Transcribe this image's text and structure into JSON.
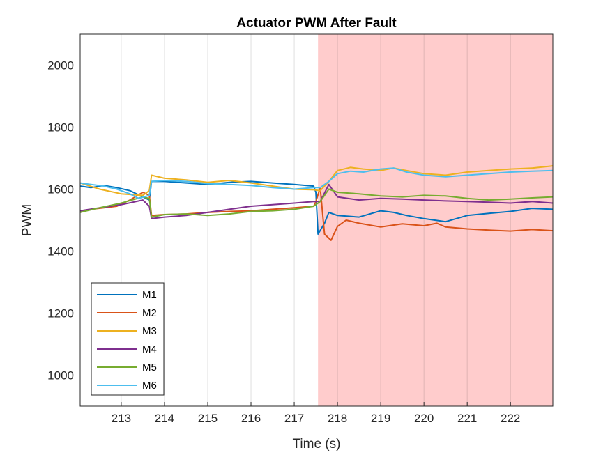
{
  "chart_data": {
    "type": "line",
    "title": "Actuator PWM After Fault",
    "xlabel": "Time (s)",
    "ylabel": "PWM",
    "xlim": [
      212.05,
      222.98
    ],
    "ylim": [
      900,
      2100
    ],
    "xticks": [
      213,
      214,
      215,
      216,
      217,
      218,
      219,
      220,
      221,
      222
    ],
    "yticks": [
      1000,
      1200,
      1400,
      1600,
      1800,
      2000
    ],
    "grid": true,
    "legend_position": "bottom-left",
    "fault_region": {
      "start": 217.55,
      "end": 222.98,
      "color": "#ffcccc"
    },
    "series": [
      {
        "name": "M1",
        "color": "#0072BD",
        "points": [
          [
            212.05,
            1610
          ],
          [
            212.3,
            1605
          ],
          [
            212.6,
            1612
          ],
          [
            212.9,
            1605
          ],
          [
            213.2,
            1595
          ],
          [
            213.5,
            1575
          ],
          [
            213.65,
            1565
          ],
          [
            213.7,
            1625
          ],
          [
            214.0,
            1625
          ],
          [
            214.5,
            1620
          ],
          [
            215.0,
            1615
          ],
          [
            215.5,
            1622
          ],
          [
            216.0,
            1625
          ],
          [
            216.5,
            1620
          ],
          [
            217.0,
            1615
          ],
          [
            217.45,
            1610
          ],
          [
            217.5,
            1590
          ],
          [
            217.55,
            1455
          ],
          [
            217.7,
            1490
          ],
          [
            217.8,
            1525
          ],
          [
            218.0,
            1515
          ],
          [
            218.5,
            1510
          ],
          [
            219.0,
            1530
          ],
          [
            219.3,
            1525
          ],
          [
            219.6,
            1515
          ],
          [
            220.0,
            1505
          ],
          [
            220.5,
            1495
          ],
          [
            221.0,
            1515
          ],
          [
            221.5,
            1522
          ],
          [
            222.0,
            1528
          ],
          [
            222.5,
            1538
          ],
          [
            222.98,
            1535
          ]
        ]
      },
      {
        "name": "M2",
        "color": "#D95319",
        "points": [
          [
            212.05,
            1530
          ],
          [
            212.3,
            1535
          ],
          [
            212.6,
            1540
          ],
          [
            212.9,
            1545
          ],
          [
            213.2,
            1565
          ],
          [
            213.5,
            1590
          ],
          [
            213.65,
            1580
          ],
          [
            213.7,
            1515
          ],
          [
            214.0,
            1518
          ],
          [
            214.5,
            1520
          ],
          [
            215.0,
            1525
          ],
          [
            215.5,
            1528
          ],
          [
            216.0,
            1530
          ],
          [
            216.5,
            1535
          ],
          [
            217.0,
            1540
          ],
          [
            217.45,
            1545
          ],
          [
            217.5,
            1560
          ],
          [
            217.6,
            1605
          ],
          [
            217.7,
            1455
          ],
          [
            217.85,
            1435
          ],
          [
            218.0,
            1480
          ],
          [
            218.2,
            1500
          ],
          [
            218.5,
            1490
          ],
          [
            219.0,
            1478
          ],
          [
            219.5,
            1488
          ],
          [
            220.0,
            1482
          ],
          [
            220.3,
            1490
          ],
          [
            220.5,
            1478
          ],
          [
            221.0,
            1472
          ],
          [
            221.5,
            1468
          ],
          [
            222.0,
            1465
          ],
          [
            222.5,
            1470
          ],
          [
            222.98,
            1466
          ]
        ]
      },
      {
        "name": "M3",
        "color": "#EDB120",
        "points": [
          [
            212.05,
            1620
          ],
          [
            212.5,
            1600
          ],
          [
            213.0,
            1585
          ],
          [
            213.5,
            1580
          ],
          [
            213.65,
            1595
          ],
          [
            213.7,
            1645
          ],
          [
            214.0,
            1635
          ],
          [
            214.5,
            1630
          ],
          [
            215.0,
            1622
          ],
          [
            215.5,
            1628
          ],
          [
            216.0,
            1620
          ],
          [
            216.5,
            1610
          ],
          [
            217.0,
            1600
          ],
          [
            217.45,
            1598
          ],
          [
            217.6,
            1595
          ],
          [
            217.8,
            1625
          ],
          [
            218.0,
            1660
          ],
          [
            218.3,
            1670
          ],
          [
            218.6,
            1665
          ],
          [
            219.0,
            1660
          ],
          [
            219.3,
            1668
          ],
          [
            219.6,
            1660
          ],
          [
            220.0,
            1650
          ],
          [
            220.5,
            1645
          ],
          [
            221.0,
            1655
          ],
          [
            221.5,
            1660
          ],
          [
            222.0,
            1665
          ],
          [
            222.5,
            1668
          ],
          [
            222.98,
            1675
          ]
        ]
      },
      {
        "name": "M4",
        "color": "#7E2F8E",
        "points": [
          [
            212.05,
            1530
          ],
          [
            212.5,
            1540
          ],
          [
            213.0,
            1550
          ],
          [
            213.5,
            1565
          ],
          [
            213.65,
            1545
          ],
          [
            213.7,
            1505
          ],
          [
            214.0,
            1510
          ],
          [
            214.5,
            1515
          ],
          [
            215.0,
            1525
          ],
          [
            215.5,
            1535
          ],
          [
            216.0,
            1545
          ],
          [
            216.5,
            1550
          ],
          [
            217.0,
            1555
          ],
          [
            217.45,
            1560
          ],
          [
            217.6,
            1560
          ],
          [
            217.8,
            1615
          ],
          [
            218.0,
            1575
          ],
          [
            218.5,
            1565
          ],
          [
            219.0,
            1570
          ],
          [
            219.5,
            1568
          ],
          [
            220.0,
            1565
          ],
          [
            220.5,
            1562
          ],
          [
            221.0,
            1560
          ],
          [
            221.5,
            1558
          ],
          [
            222.0,
            1555
          ],
          [
            222.5,
            1560
          ],
          [
            222.98,
            1555
          ]
        ]
      },
      {
        "name": "M5",
        "color": "#77AC30",
        "points": [
          [
            212.05,
            1525
          ],
          [
            212.5,
            1540
          ],
          [
            213.0,
            1555
          ],
          [
            213.5,
            1575
          ],
          [
            213.65,
            1570
          ],
          [
            213.7,
            1510
          ],
          [
            214.0,
            1518
          ],
          [
            214.5,
            1520
          ],
          [
            215.0,
            1515
          ],
          [
            215.5,
            1520
          ],
          [
            216.0,
            1528
          ],
          [
            216.5,
            1530
          ],
          [
            217.0,
            1535
          ],
          [
            217.45,
            1545
          ],
          [
            217.6,
            1560
          ],
          [
            217.8,
            1600
          ],
          [
            218.0,
            1590
          ],
          [
            218.5,
            1585
          ],
          [
            219.0,
            1578
          ],
          [
            219.5,
            1575
          ],
          [
            220.0,
            1580
          ],
          [
            220.5,
            1578
          ],
          [
            221.0,
            1570
          ],
          [
            221.5,
            1565
          ],
          [
            222.0,
            1568
          ],
          [
            222.5,
            1572
          ],
          [
            222.98,
            1575
          ]
        ]
      },
      {
        "name": "M6",
        "color": "#4DBEEE",
        "points": [
          [
            212.05,
            1620
          ],
          [
            212.3,
            1615
          ],
          [
            212.6,
            1610
          ],
          [
            212.9,
            1600
          ],
          [
            213.2,
            1585
          ],
          [
            213.4,
            1570
          ],
          [
            213.65,
            1580
          ],
          [
            213.7,
            1625
          ],
          [
            214.0,
            1628
          ],
          [
            214.5,
            1625
          ],
          [
            215.0,
            1618
          ],
          [
            215.5,
            1615
          ],
          [
            216.0,
            1612
          ],
          [
            216.5,
            1605
          ],
          [
            217.0,
            1600
          ],
          [
            217.45,
            1605
          ],
          [
            217.6,
            1605
          ],
          [
            217.8,
            1625
          ],
          [
            218.0,
            1650
          ],
          [
            218.3,
            1658
          ],
          [
            218.6,
            1655
          ],
          [
            219.0,
            1665
          ],
          [
            219.3,
            1668
          ],
          [
            219.6,
            1655
          ],
          [
            220.0,
            1645
          ],
          [
            220.5,
            1640
          ],
          [
            221.0,
            1645
          ],
          [
            221.5,
            1650
          ],
          [
            222.0,
            1655
          ],
          [
            222.5,
            1658
          ],
          [
            222.98,
            1660
          ]
        ]
      }
    ]
  }
}
